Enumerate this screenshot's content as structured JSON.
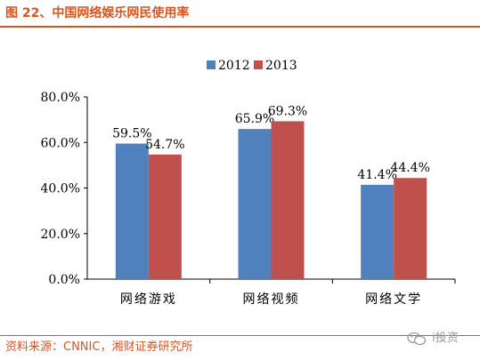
{
  "header": {
    "title": "图 22、中国网络娱乐网民使用率"
  },
  "footer": {
    "source": "资料来源：CNNIC，湘财证券研究所",
    "watermark": "i投资"
  },
  "colors": {
    "accent": "#d9531e",
    "series_2012": "#4f81bd",
    "series_2013": "#c0504d"
  },
  "chart_data": {
    "type": "bar",
    "title": "",
    "xlabel": "",
    "ylabel": "",
    "categories": [
      "网络游戏",
      "网络视频",
      "网络文学"
    ],
    "series": [
      {
        "name": "2012",
        "values": [
          59.5,
          65.9,
          41.4
        ],
        "labels": [
          "59.5%",
          "65.9%",
          "41.4%"
        ],
        "color": "#4f81bd"
      },
      {
        "name": "2013",
        "values": [
          54.7,
          69.3,
          44.4
        ],
        "labels": [
          "54.7%",
          "69.3%",
          "44.4%"
        ],
        "color": "#c0504d"
      }
    ],
    "ylim": [
      0,
      80
    ],
    "yticks": [
      0,
      20,
      40,
      60,
      80
    ],
    "ytick_labels": [
      "0.0%",
      "20.0%",
      "40.0%",
      "60.0%",
      "80.0%"
    ],
    "legend_position": "top-center",
    "grid": false
  }
}
